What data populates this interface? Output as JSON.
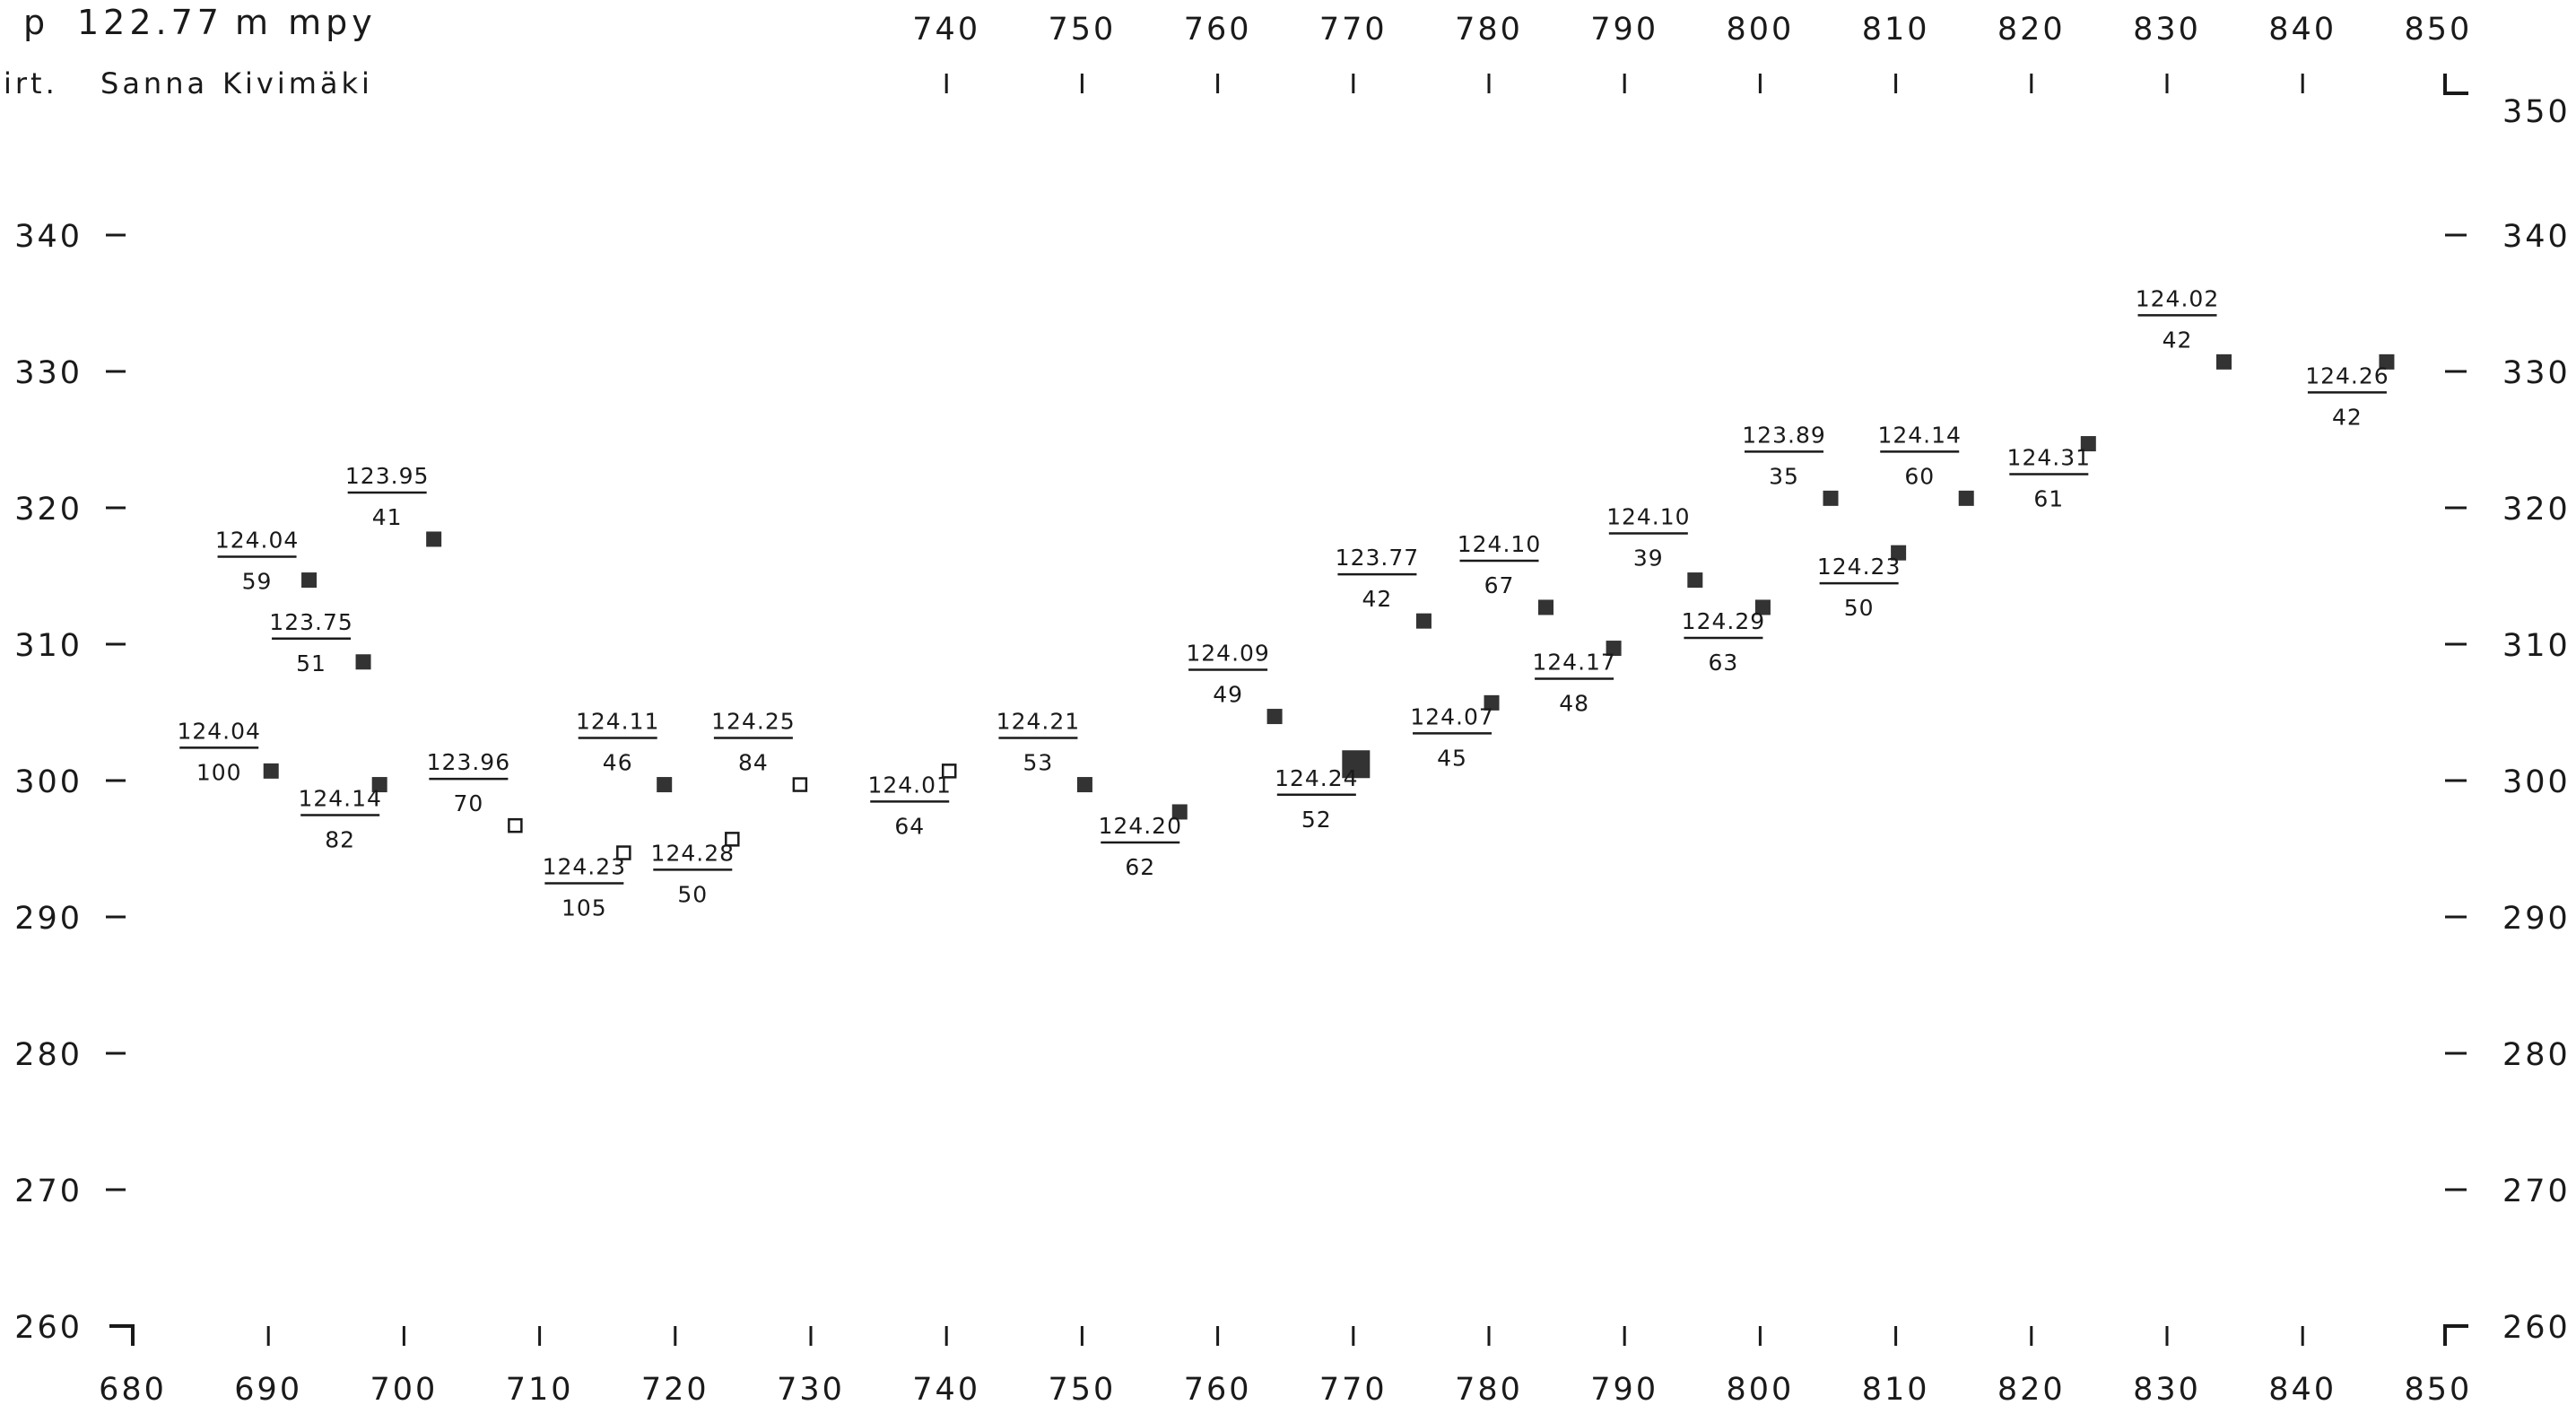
{
  "header": {
    "level_prefix": "p",
    "level_value": "122.77",
    "level_unit": "m mpy",
    "author_prefix": "irt.",
    "author_name": "Sanna",
    "author_surname": "Kivimäki"
  },
  "chart_data": {
    "type": "scatter",
    "title": "",
    "xlabel": "",
    "ylabel": "",
    "xlim": [
      680,
      850
    ],
    "ylim": [
      260,
      350
    ],
    "x_ticks": [
      680,
      690,
      700,
      710,
      720,
      730,
      740,
      750,
      760,
      770,
      780,
      790,
      800,
      810,
      820,
      830,
      840,
      850
    ],
    "top_x_ticks": [
      740,
      750,
      760,
      770,
      780,
      790,
      800,
      810,
      820,
      830,
      840,
      850
    ],
    "y_ticks": [
      260,
      270,
      280,
      290,
      300,
      310,
      320,
      330,
      340,
      350
    ],
    "left_y_ticks": [
      260,
      270,
      280,
      290,
      300,
      310,
      320,
      330,
      340
    ],
    "marker_legend": {
      "filled": "filled square",
      "open": "open square"
    },
    "points": [
      {
        "x": 690.2,
        "y": 300.7,
        "upper": "124.04",
        "lower": "100",
        "marker": "filled",
        "label_side": "left"
      },
      {
        "x": 693.0,
        "y": 314.7,
        "upper": "124.04",
        "lower": "59",
        "marker": "filled",
        "label_side": "left"
      },
      {
        "x": 697.0,
        "y": 308.7,
        "upper": "123.75",
        "lower": "51",
        "marker": "filled",
        "label_side": "left"
      },
      {
        "x": 698.2,
        "y": 299.7,
        "upper": "124.14",
        "lower": "82",
        "marker": "filled",
        "label_side": "below"
      },
      {
        "x": 702.2,
        "y": 317.7,
        "upper": "123.95",
        "lower": "41",
        "marker": "filled",
        "label_side": "above"
      },
      {
        "x": 708.2,
        "y": 296.7,
        "upper": "123.96",
        "lower": "70",
        "marker": "open",
        "label_side": "above"
      },
      {
        "x": 716.2,
        "y": 294.7,
        "upper": "124.23",
        "lower": "105",
        "marker": "open",
        "label_side": "below"
      },
      {
        "x": 719.2,
        "y": 299.7,
        "upper": "124.11",
        "lower": "46",
        "marker": "filled",
        "label_side": "above"
      },
      {
        "x": 724.2,
        "y": 295.7,
        "upper": "124.28",
        "lower": "50",
        "marker": "open",
        "label_side": "below"
      },
      {
        "x": 729.2,
        "y": 299.7,
        "upper": "124.25",
        "lower": "84",
        "marker": "open",
        "label_side": "above"
      },
      {
        "x": 740.2,
        "y": 300.7,
        "upper": "124.01",
        "lower": "64",
        "marker": "open",
        "label_side": "below"
      },
      {
        "x": 750.2,
        "y": 299.7,
        "upper": "124.21",
        "lower": "53",
        "marker": "filled",
        "label_side": "above"
      },
      {
        "x": 757.2,
        "y": 297.7,
        "upper": "124.20",
        "lower": "62",
        "marker": "filled",
        "label_side": "below"
      },
      {
        "x": 764.2,
        "y": 304.7,
        "upper": "124.09",
        "lower": "49",
        "marker": "filled",
        "label_side": "above"
      },
      {
        "x": 770.2,
        "y": 301.2,
        "upper": "124.24",
        "lower": "52",
        "marker": "filled",
        "label_side": "below",
        "large": true
      },
      {
        "x": 775.2,
        "y": 311.7,
        "upper": "123.77",
        "lower": "42",
        "marker": "filled",
        "label_side": "above"
      },
      {
        "x": 780.2,
        "y": 305.7,
        "upper": "124.07",
        "lower": "45",
        "marker": "filled",
        "label_side": "below"
      },
      {
        "x": 784.2,
        "y": 312.7,
        "upper": "124.10",
        "lower": "67",
        "marker": "filled",
        "label_side": "above"
      },
      {
        "x": 789.2,
        "y": 309.7,
        "upper": "124.17",
        "lower": "48",
        "marker": "filled",
        "label_side": "below"
      },
      {
        "x": 795.2,
        "y": 314.7,
        "upper": "124.10",
        "lower": "39",
        "marker": "filled",
        "label_side": "above"
      },
      {
        "x": 800.2,
        "y": 312.7,
        "upper": "124.29",
        "lower": "63",
        "marker": "filled",
        "label_side": "below"
      },
      {
        "x": 805.2,
        "y": 320.7,
        "upper": "123.89",
        "lower": "35",
        "marker": "filled",
        "label_side": "above"
      },
      {
        "x": 810.2,
        "y": 316.7,
        "upper": "124.23",
        "lower": "50",
        "marker": "filled",
        "label_side": "below"
      },
      {
        "x": 815.2,
        "y": 320.7,
        "upper": "124.14",
        "lower": "60",
        "marker": "filled",
        "label_side": "above"
      },
      {
        "x": 824.2,
        "y": 324.7,
        "upper": "124.31",
        "lower": "61",
        "marker": "filled",
        "label_side": "below"
      },
      {
        "x": 834.2,
        "y": 330.7,
        "upper": "124.02",
        "lower": "42",
        "marker": "filled",
        "label_side": "above"
      },
      {
        "x": 846.2,
        "y": 330.7,
        "upper": "124.26",
        "lower": "42",
        "marker": "filled",
        "label_side": "below"
      }
    ]
  }
}
